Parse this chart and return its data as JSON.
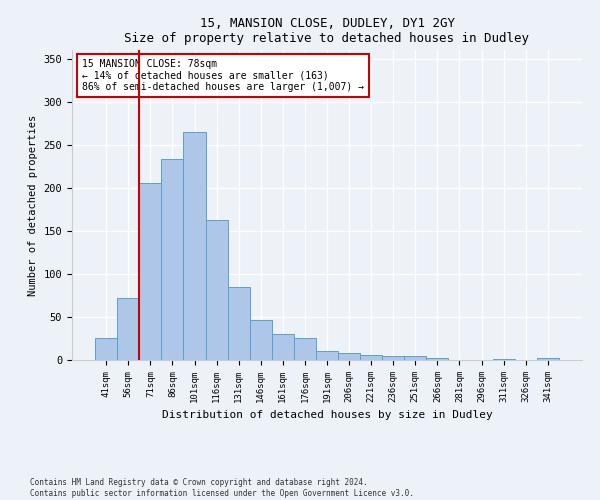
{
  "title_line1": "15, MANSION CLOSE, DUDLEY, DY1 2GY",
  "title_line2": "Size of property relative to detached houses in Dudley",
  "xlabel": "Distribution of detached houses by size in Dudley",
  "ylabel": "Number of detached properties",
  "categories": [
    "41sqm",
    "56sqm",
    "71sqm",
    "86sqm",
    "101sqm",
    "116sqm",
    "131sqm",
    "146sqm",
    "161sqm",
    "176sqm",
    "191sqm",
    "206sqm",
    "221sqm",
    "236sqm",
    "251sqm",
    "266sqm",
    "281sqm",
    "296sqm",
    "311sqm",
    "326sqm",
    "341sqm"
  ],
  "values": [
    26,
    72,
    205,
    233,
    265,
    163,
    85,
    47,
    30,
    25,
    11,
    8,
    6,
    5,
    5,
    2,
    0,
    0,
    1,
    0,
    2
  ],
  "bar_color": "#aec6e8",
  "bar_edge_color": "#5a9fd4",
  "vline_x": 1.5,
  "vline_color": "#cc0000",
  "annotation_text": "15 MANSION CLOSE: 78sqm\n← 14% of detached houses are smaller (163)\n86% of semi-detached houses are larger (1,007) →",
  "annotation_box_color": "#ffffff",
  "annotation_box_edge_color": "#cc0000",
  "ylim": [
    0,
    360
  ],
  "yticks": [
    0,
    50,
    100,
    150,
    200,
    250,
    300,
    350
  ],
  "footnote": "Contains HM Land Registry data © Crown copyright and database right 2024.\nContains public sector information licensed under the Open Government Licence v3.0.",
  "background_color": "#edf2f9",
  "plot_background_color": "#edf2f9",
  "grid_color": "#ffffff"
}
